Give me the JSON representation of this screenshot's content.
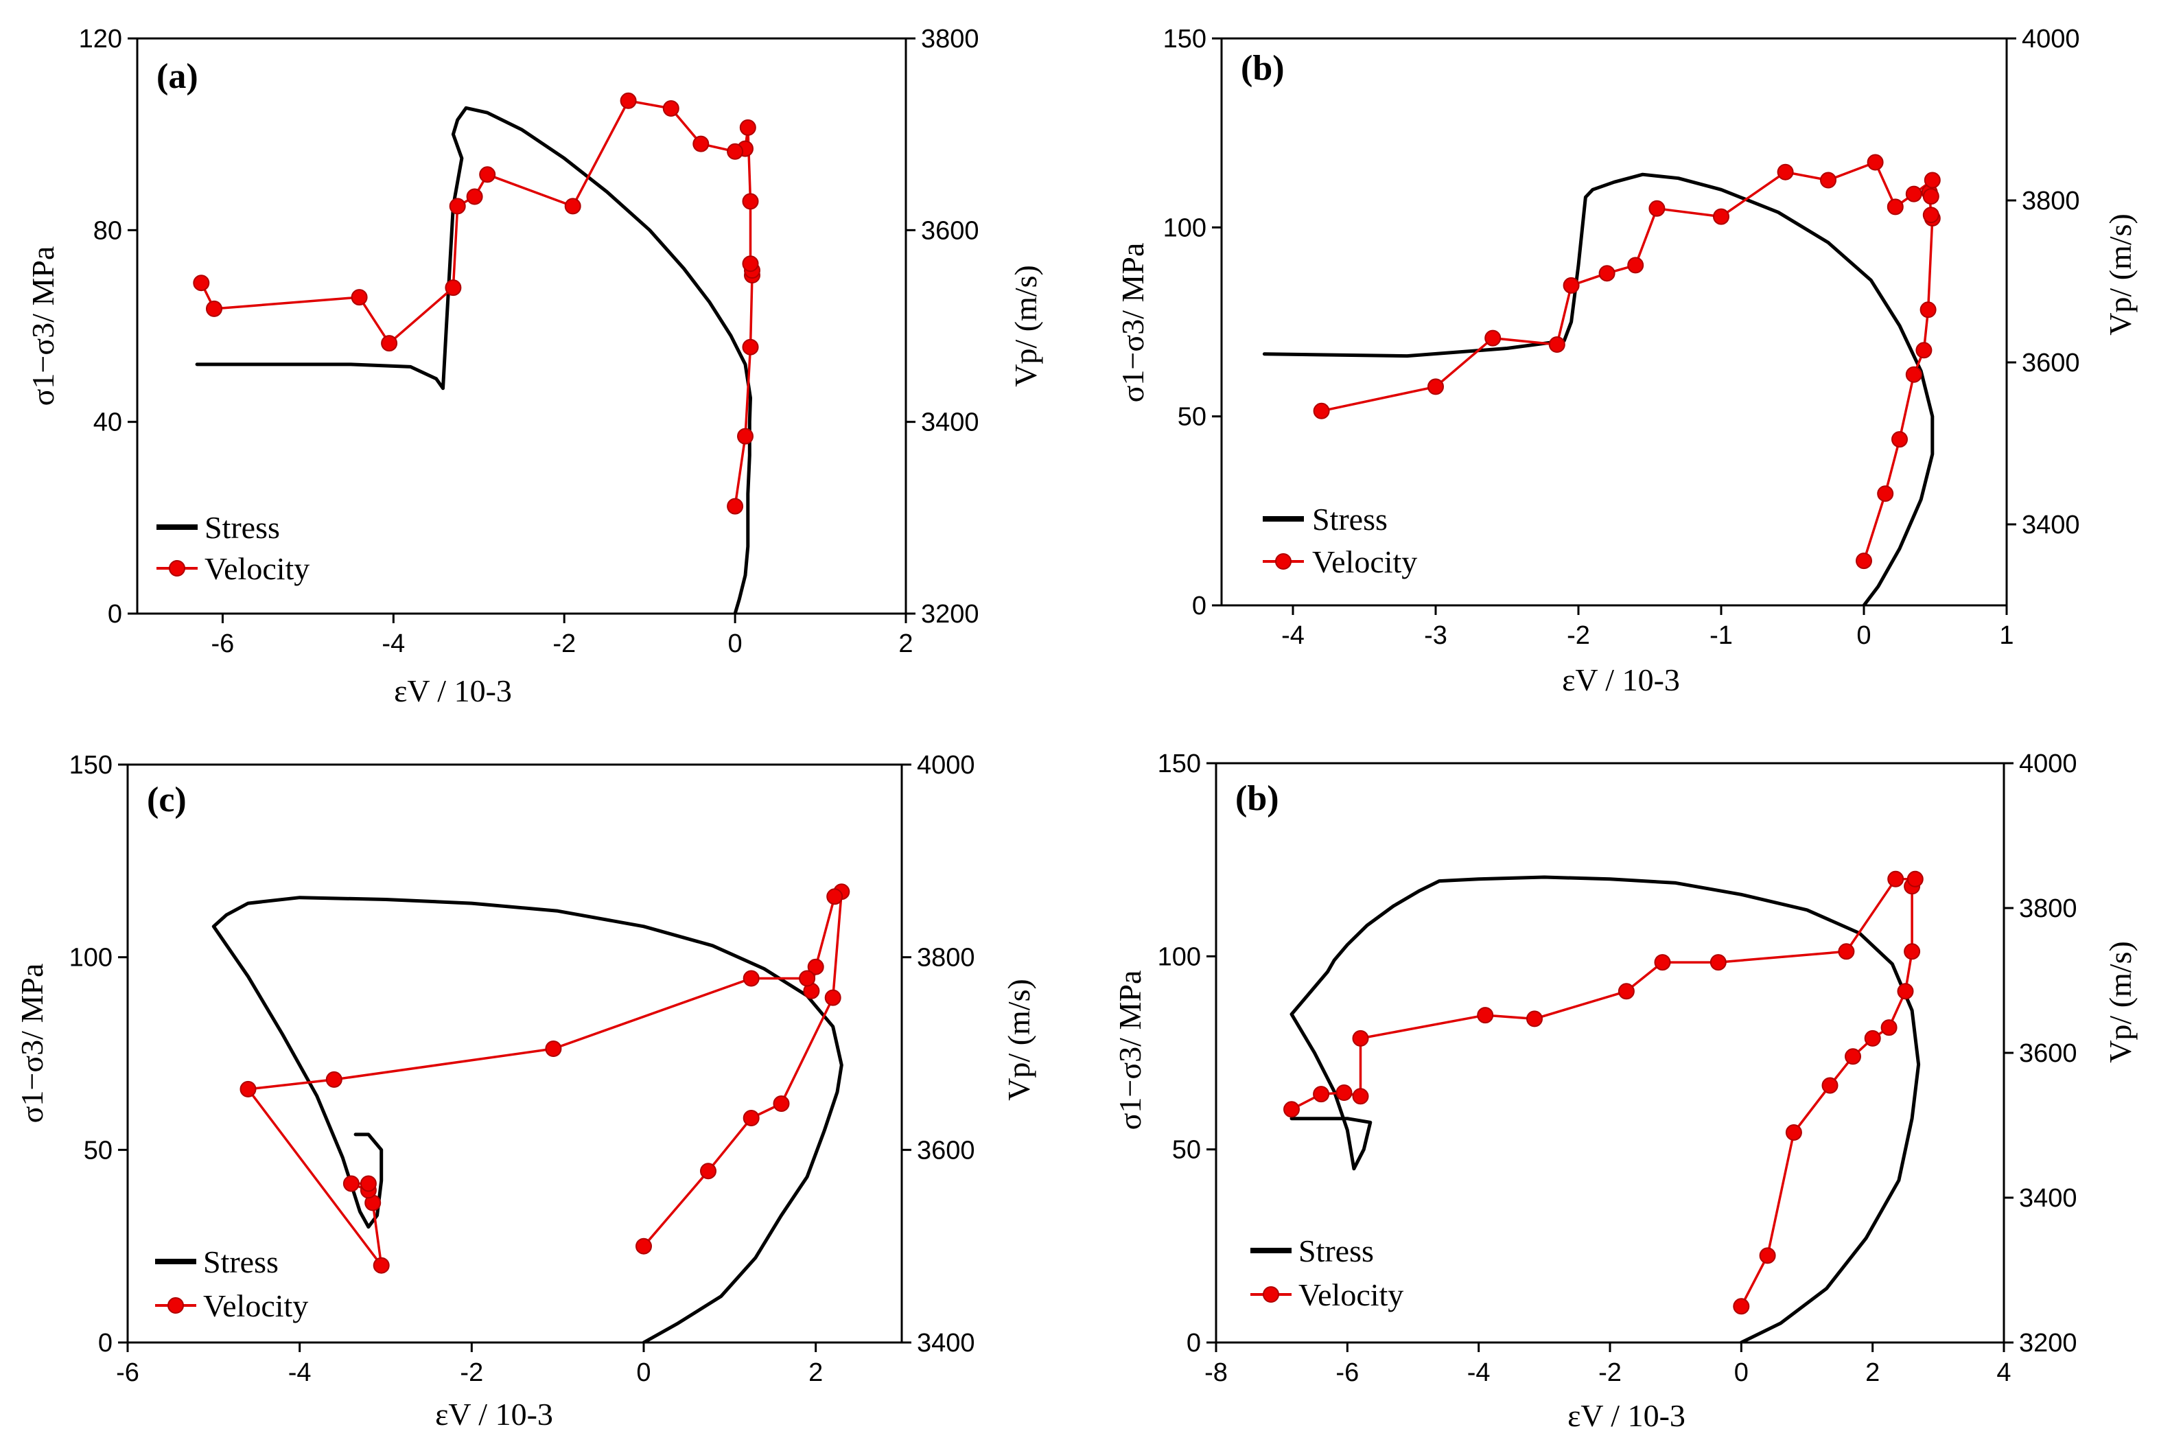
{
  "chart_data": [
    {
      "type": "line",
      "panel_label": "(a)",
      "xlabel": "εV / 10-3",
      "ylabel": "σ1−σ3/ MPa",
      "y2label": "Vp/ (m/s)",
      "xlim": [
        -7,
        2
      ],
      "ylim": [
        0,
        120
      ],
      "y2lim": [
        3200,
        3800
      ],
      "xticks": [
        "-6",
        "-4",
        "-2",
        "0",
        "2"
      ],
      "yticks": [
        "0",
        "40",
        "80",
        "120"
      ],
      "y2ticks": [
        "3200",
        "3400",
        "3600",
        "3800"
      ],
      "legend_position": "lower-left",
      "series": [
        {
          "name": "Stress",
          "axis": "left",
          "color": "#000000",
          "points": [
            [
              0,
              0
            ],
            [
              0.05,
              3
            ],
            [
              0.12,
              8
            ],
            [
              0.15,
              14
            ],
            [
              0.15,
              25
            ],
            [
              0.17,
              33
            ],
            [
              0.17,
              40
            ],
            [
              0.18,
              45
            ],
            [
              0.12,
              52
            ],
            [
              -0.05,
              58
            ],
            [
              -0.3,
              65
            ],
            [
              -0.6,
              72
            ],
            [
              -1.0,
              80
            ],
            [
              -1.5,
              88
            ],
            [
              -2.0,
              95
            ],
            [
              -2.5,
              101
            ],
            [
              -2.9,
              104.5
            ],
            [
              -3.15,
              105.5
            ],
            [
              -3.25,
              103
            ],
            [
              -3.3,
              100
            ],
            [
              -3.2,
              95
            ],
            [
              -3.3,
              85
            ],
            [
              -3.38,
              60
            ],
            [
              -3.42,
              47
            ],
            [
              -3.5,
              49
            ],
            [
              -3.8,
              51.5
            ],
            [
              -4.5,
              52
            ],
            [
              -6.3,
              52
            ]
          ]
        },
        {
          "name": "Velocity",
          "axis": "right",
          "color": "#e00000",
          "points": [
            [
              0.0,
              3312
            ],
            [
              0.12,
              3385
            ],
            [
              0.18,
              3478
            ],
            [
              0.2,
              3553
            ],
            [
              0.2,
              3558
            ],
            [
              0.18,
              3565
            ],
            [
              0.18,
              3630
            ],
            [
              0.15,
              3707
            ],
            [
              0.12,
              3685
            ],
            [
              0.0,
              3682
            ],
            [
              -0.4,
              3690
            ],
            [
              -0.75,
              3727
            ],
            [
              -1.25,
              3735
            ],
            [
              -1.9,
              3625
            ],
            [
              -2.9,
              3658
            ],
            [
              -3.05,
              3635
            ],
            [
              -3.25,
              3625
            ],
            [
              -3.3,
              3540
            ],
            [
              -4.05,
              3482
            ],
            [
              -4.4,
              3530
            ],
            [
              -6.1,
              3518
            ],
            [
              -6.25,
              3545
            ]
          ]
        }
      ]
    },
    {
      "type": "line",
      "panel_label": "(b)",
      "xlabel": "εV / 10-3",
      "ylabel": "σ1−σ3/ MPa",
      "y2label": "Vp/ (m/s)",
      "xlim": [
        -4.5,
        1
      ],
      "ylim": [
        0,
        150
      ],
      "y2lim": [
        3300,
        4000
      ],
      "xticks": [
        "-4",
        "-3",
        "-2",
        "-1",
        "0",
        "1"
      ],
      "yticks": [
        "0",
        "50",
        "100",
        "150"
      ],
      "y2ticks": [
        "3400",
        "3600",
        "3800",
        "4000"
      ],
      "legend_position": "lower-left",
      "series": [
        {
          "name": "Stress",
          "axis": "left",
          "color": "#000000",
          "points": [
            [
              0,
              0
            ],
            [
              0.1,
              5
            ],
            [
              0.25,
              15
            ],
            [
              0.4,
              28
            ],
            [
              0.48,
              40
            ],
            [
              0.48,
              50
            ],
            [
              0.4,
              62
            ],
            [
              0.25,
              74
            ],
            [
              0.05,
              86
            ],
            [
              -0.25,
              96
            ],
            [
              -0.6,
              104
            ],
            [
              -1.0,
              110
            ],
            [
              -1.3,
              113
            ],
            [
              -1.55,
              114
            ],
            [
              -1.75,
              112
            ],
            [
              -1.9,
              110
            ],
            [
              -1.95,
              108
            ],
            [
              -2.0,
              90
            ],
            [
              -2.05,
              75
            ],
            [
              -2.1,
              70
            ],
            [
              -2.5,
              68
            ],
            [
              -3.2,
              66
            ],
            [
              -4.2,
              66.5
            ]
          ]
        },
        {
          "name": "Velocity",
          "axis": "right",
          "color": "#e00000",
          "points": [
            [
              0.0,
              3355
            ],
            [
              0.15,
              3438
            ],
            [
              0.25,
              3505
            ],
            [
              0.35,
              3585
            ],
            [
              0.42,
              3615
            ],
            [
              0.45,
              3665
            ],
            [
              0.48,
              3778
            ],
            [
              0.47,
              3782
            ],
            [
              0.46,
              3810
            ],
            [
              0.47,
              3805
            ],
            [
              0.48,
              3825
            ],
            [
              0.35,
              3808
            ],
            [
              0.22,
              3792
            ],
            [
              0.08,
              3847
            ],
            [
              -0.25,
              3825
            ],
            [
              -0.55,
              3835
            ],
            [
              -1.0,
              3780
            ],
            [
              -1.45,
              3790
            ],
            [
              -1.6,
              3720
            ],
            [
              -1.8,
              3710
            ],
            [
              -2.05,
              3695
            ],
            [
              -2.15,
              3622
            ],
            [
              -2.6,
              3630
            ],
            [
              -3.0,
              3570
            ],
            [
              -3.8,
              3540
            ]
          ]
        }
      ]
    },
    {
      "type": "line",
      "panel_label": "(c)",
      "xlabel": "εV / 10-3",
      "ylabel": "σ1−σ3/ MPa",
      "y2label": "Vp/ (m/s)",
      "xlim": [
        -6,
        3
      ],
      "ylim": [
        0,
        150
      ],
      "y2lim": [
        3400,
        4000
      ],
      "xticks": [
        "-6",
        "-4",
        "-2",
        "0",
        "2"
      ],
      "yticks": [
        "0",
        "50",
        "100",
        "150"
      ],
      "y2ticks": [
        "3400",
        "3600",
        "3800",
        "4000"
      ],
      "legend_position": "lower-left",
      "series": [
        {
          "name": "Stress",
          "axis": "left",
          "color": "#000000",
          "points": [
            [
              0,
              0
            ],
            [
              0.4,
              5
            ],
            [
              0.9,
              12
            ],
            [
              1.3,
              22
            ],
            [
              1.6,
              33
            ],
            [
              1.9,
              43
            ],
            [
              2.1,
              55
            ],
            [
              2.25,
              65
            ],
            [
              2.3,
              72
            ],
            [
              2.2,
              82
            ],
            [
              1.9,
              90
            ],
            [
              1.4,
              97
            ],
            [
              0.8,
              103
            ],
            [
              0.0,
              108
            ],
            [
              -1.0,
              112
            ],
            [
              -2.0,
              114
            ],
            [
              -3.0,
              115
            ],
            [
              -4.0,
              115.5
            ],
            [
              -4.6,
              114
            ],
            [
              -4.85,
              111
            ],
            [
              -5.0,
              108
            ],
            [
              -4.6,
              95
            ],
            [
              -4.2,
              80
            ],
            [
              -3.8,
              64
            ],
            [
              -3.5,
              48
            ],
            [
              -3.3,
              34
            ],
            [
              -3.2,
              30
            ],
            [
              -3.1,
              33
            ],
            [
              -3.05,
              42
            ],
            [
              -3.05,
              50
            ],
            [
              -3.2,
              54
            ],
            [
              -3.35,
              54
            ]
          ]
        },
        {
          "name": "Velocity",
          "axis": "right",
          "color": "#e00000",
          "points": [
            [
              0.0,
              3500
            ],
            [
              0.75,
              3578
            ],
            [
              1.25,
              3633
            ],
            [
              1.6,
              3648
            ],
            [
              2.2,
              3758
            ],
            [
              2.3,
              3868
            ],
            [
              2.22,
              3863
            ],
            [
              2.0,
              3790
            ],
            [
              1.95,
              3765
            ],
            [
              1.9,
              3778
            ],
            [
              1.25,
              3778
            ],
            [
              -1.05,
              3705
            ],
            [
              -3.6,
              3673
            ],
            [
              -4.6,
              3663
            ],
            [
              -3.05,
              3480
            ],
            [
              -3.15,
              3545
            ],
            [
              -3.2,
              3558
            ],
            [
              -3.4,
              3565
            ],
            [
              -3.2,
              3565
            ]
          ]
        }
      ]
    },
    {
      "type": "line",
      "panel_label": "(b)",
      "xlabel": "εV / 10-3",
      "ylabel": "σ1−σ3/ MPa",
      "y2label": "Vp/ (m/s)",
      "xlim": [
        -8,
        4
      ],
      "ylim": [
        0,
        150
      ],
      "y2lim": [
        3200,
        4000
      ],
      "xticks": [
        "-8",
        "-6",
        "-4",
        "-2",
        "0",
        "2",
        "4"
      ],
      "yticks": [
        "0",
        "50",
        "100",
        "150"
      ],
      "y2ticks": [
        "3200",
        "3400",
        "3600",
        "3800",
        "4000"
      ],
      "legend_position": "lower-left",
      "series": [
        {
          "name": "Stress",
          "axis": "left",
          "color": "#000000",
          "points": [
            [
              0,
              0
            ],
            [
              0.6,
              5
            ],
            [
              1.3,
              14
            ],
            [
              1.9,
              27
            ],
            [
              2.4,
              42
            ],
            [
              2.6,
              58
            ],
            [
              2.7,
              72
            ],
            [
              2.6,
              86
            ],
            [
              2.3,
              98
            ],
            [
              1.8,
              106
            ],
            [
              1.0,
              112
            ],
            [
              0.0,
              116
            ],
            [
              -1.0,
              119
            ],
            [
              -2.0,
              120
            ],
            [
              -3.0,
              120.5
            ],
            [
              -4.0,
              120
            ],
            [
              -4.6,
              119.5
            ],
            [
              -4.9,
              117
            ],
            [
              -5.3,
              113
            ],
            [
              -5.7,
              108
            ],
            [
              -6.0,
              103
            ],
            [
              -6.2,
              99
            ],
            [
              -6.3,
              96
            ],
            [
              -6.6,
              90
            ],
            [
              -6.85,
              85
            ],
            [
              -6.5,
              75
            ],
            [
              -6.2,
              65
            ],
            [
              -6.0,
              55
            ],
            [
              -5.9,
              45
            ],
            [
              -5.75,
              50
            ],
            [
              -5.65,
              57
            ],
            [
              -6.0,
              58
            ],
            [
              -6.85,
              58
            ]
          ]
        },
        {
          "name": "Velocity",
          "axis": "right",
          "color": "#e00000",
          "points": [
            [
              0.0,
              3250
            ],
            [
              0.4,
              3320
            ],
            [
              0.8,
              3490
            ],
            [
              1.35,
              3555
            ],
            [
              1.7,
              3595
            ],
            [
              2.0,
              3620
            ],
            [
              2.25,
              3635
            ],
            [
              2.5,
              3685
            ],
            [
              2.6,
              3740
            ],
            [
              2.6,
              3830
            ],
            [
              2.65,
              3840
            ],
            [
              2.35,
              3840
            ],
            [
              1.6,
              3740
            ],
            [
              -0.35,
              3725
            ],
            [
              -1.2,
              3725
            ],
            [
              -1.75,
              3685
            ],
            [
              -3.15,
              3647
            ],
            [
              -3.9,
              3652
            ],
            [
              -5.8,
              3620
            ],
            [
              -5.8,
              3540
            ],
            [
              -6.05,
              3545
            ],
            [
              -6.4,
              3543
            ],
            [
              -6.85,
              3522
            ]
          ]
        }
      ]
    }
  ]
}
